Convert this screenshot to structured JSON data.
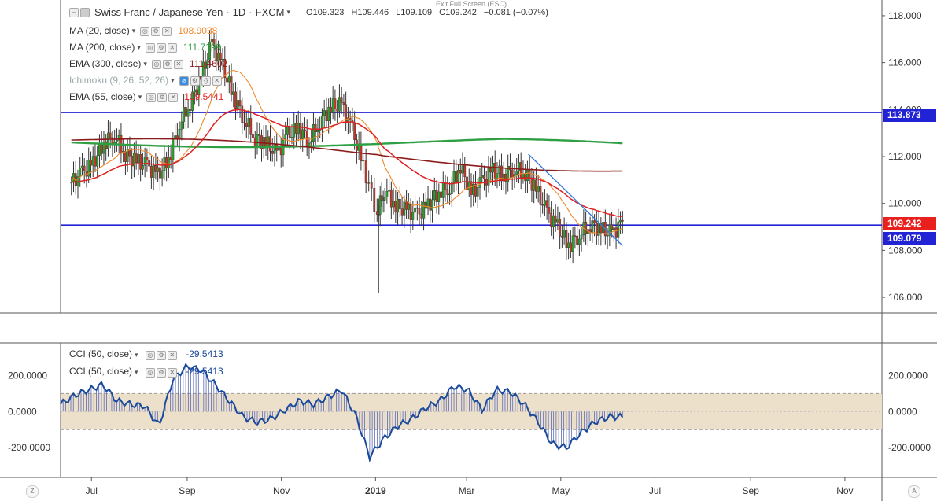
{
  "header": {
    "symbol": "Swiss Franc / Japanese Yen",
    "interval": "1D",
    "exchange": "FXCM",
    "ohlc": {
      "o": "O109.323",
      "h": "H109.446",
      "l": "L109.109",
      "c": "C109.242",
      "chg": "−0.081 (−0.07%)"
    },
    "exit_fullscreen": "Exit Full Screen (ESC)"
  },
  "indicators": [
    {
      "label": "MA (20, close)",
      "value": "108.9038",
      "color": "#f08a2d"
    },
    {
      "label": "MA (200, close)",
      "value": "111.7199",
      "color": "#2ea043"
    },
    {
      "label": "EMA (300, close)",
      "value": "111.4602",
      "color": "#8b1a1a"
    },
    {
      "label": "Ichimoku (9, 26, 52, 26)",
      "value": "",
      "color": "#9aa"
    },
    {
      "label": "EMA (55, close)",
      "value": "109.5441",
      "color": "#e02020"
    }
  ],
  "cci_legend": [
    {
      "label": "CCI (50, close)",
      "value": "-29.5413",
      "color": "#1a4a9c"
    },
    {
      "label": "CCI (50, close)",
      "value": "-29.5413",
      "color": "#1a4a9c"
    }
  ],
  "price_tags": [
    {
      "value": "113.873",
      "color": "#2323d6"
    },
    {
      "value": "109.242",
      "color": "#e8201e"
    },
    {
      "value": "109.079",
      "color": "#2323d6"
    }
  ],
  "corner_icons": {
    "left": "Z",
    "right": "A"
  },
  "chart_data": [
    {
      "type": "candlestick",
      "title": "Swiss Franc / Japanese Yen",
      "price_axis": {
        "ticks": [
          "118.000",
          "116.000",
          "114.000",
          "112.000",
          "110.000",
          "108.000",
          "106.000"
        ],
        "ylim": [
          105.5,
          118.5
        ]
      },
      "time_axis": {
        "ticks": [
          "Jul",
          "Sep",
          "Nov",
          "2019",
          "Mar",
          "May",
          "Jul",
          "Sep",
          "Nov"
        ]
      },
      "horizontal_lines": [
        113.873,
        109.079
      ],
      "trendline": {
        "from": [
          "2019-04-10",
          112.1
        ],
        "to": [
          "2019-06-10",
          108.2
        ]
      },
      "close_series_approx": [
        [
          "2018-06-18",
          110.9
        ],
        [
          "2018-06-25",
          111.3
        ],
        [
          "2018-07-02",
          111.7
        ],
        [
          "2018-07-09",
          112.6
        ],
        [
          "2018-07-16",
          112.9
        ],
        [
          "2018-07-23",
          112.1
        ],
        [
          "2018-07-30",
          111.8
        ],
        [
          "2018-08-06",
          111.6
        ],
        [
          "2018-08-13",
          111.2
        ],
        [
          "2018-08-20",
          111.9
        ],
        [
          "2018-08-27",
          113.4
        ],
        [
          "2018-09-03",
          114.3
        ],
        [
          "2018-09-10",
          115.4
        ],
        [
          "2018-09-17",
          116.8
        ],
        [
          "2018-09-24",
          115.8
        ],
        [
          "2018-10-01",
          114.6
        ],
        [
          "2018-10-08",
          113.6
        ],
        [
          "2018-10-15",
          112.8
        ],
        [
          "2018-10-22",
          112.6
        ],
        [
          "2018-10-29",
          112.1
        ],
        [
          "2018-11-05",
          112.9
        ],
        [
          "2018-11-12",
          113.2
        ],
        [
          "2018-11-19",
          112.7
        ],
        [
          "2018-11-26",
          113.5
        ],
        [
          "2018-12-03",
          114.1
        ],
        [
          "2018-12-10",
          114.2
        ],
        [
          "2018-12-17",
          113.1
        ],
        [
          "2018-12-24",
          111.6
        ],
        [
          "2019-01-02",
          109.6
        ],
        [
          "2019-01-07",
          110.6
        ],
        [
          "2019-01-14",
          109.9
        ],
        [
          "2019-01-21",
          109.7
        ],
        [
          "2019-01-28",
          109.5
        ],
        [
          "2019-02-04",
          109.9
        ],
        [
          "2019-02-11",
          110.5
        ],
        [
          "2019-02-18",
          110.7
        ],
        [
          "2019-02-25",
          111.6
        ],
        [
          "2019-03-04",
          110.4
        ],
        [
          "2019-03-11",
          110.9
        ],
        [
          "2019-03-18",
          111.4
        ],
        [
          "2019-03-25",
          111.2
        ],
        [
          "2019-04-01",
          111.5
        ],
        [
          "2019-04-08",
          111.3
        ],
        [
          "2019-04-15",
          110.6
        ],
        [
          "2019-04-22",
          109.6
        ],
        [
          "2019-04-29",
          109.0
        ],
        [
          "2019-05-06",
          108.2
        ],
        [
          "2019-05-13",
          108.7
        ],
        [
          "2019-05-20",
          109.1
        ],
        [
          "2019-05-27",
          108.9
        ],
        [
          "2019-06-03",
          108.7
        ],
        [
          "2019-06-10",
          109.24
        ]
      ]
    },
    {
      "type": "line",
      "title": "CCI (50, close)",
      "y_axis": {
        "ticks": [
          "200.0000",
          "0.0000",
          "-200.0000"
        ],
        "ylim": [
          -360,
          380
        ]
      },
      "band": [
        -100,
        100
      ],
      "values_approx": [
        40,
        90,
        120,
        150,
        60,
        40,
        30,
        -80,
        180,
        250,
        230,
        150,
        60,
        -30,
        -60,
        -40,
        10,
        60,
        40,
        80,
        120,
        -20,
        -250,
        -150,
        -80,
        -40,
        20,
        60,
        140,
        120,
        10,
        120,
        110,
        40,
        -60,
        -180,
        -200,
        -120,
        -60,
        -30,
        -29.5413
      ]
    }
  ]
}
